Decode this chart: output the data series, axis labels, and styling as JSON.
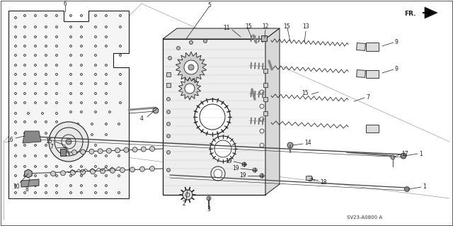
{
  "background_color": "#ffffff",
  "line_color": "#1a1a1a",
  "fig_width": 6.4,
  "fig_height": 3.19,
  "dpi": 100,
  "ref_text": "SV23-A0800 A",
  "thin_lw": 0.5,
  "med_lw": 0.8,
  "thick_lw": 1.2
}
